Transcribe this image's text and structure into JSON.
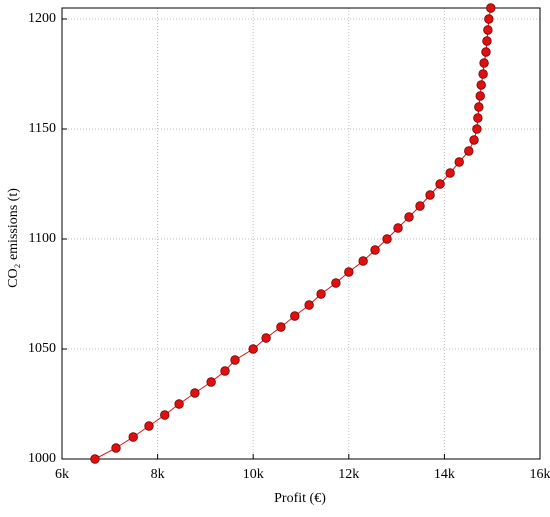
{
  "chart_data": {
    "type": "scatter",
    "xlabel": "Profit (€)",
    "ylabel": "CO₂ emissions (t)",
    "x": [
      6690,
      7130,
      7490,
      7820,
      8150,
      8450,
      8780,
      9120,
      9410,
      9620,
      10000,
      10270,
      10580,
      10870,
      11170,
      11420,
      11730,
      12000,
      12300,
      12550,
      12800,
      13030,
      13260,
      13490,
      13700,
      13910,
      14120,
      14310,
      14510,
      14620,
      14680,
      14700,
      14720,
      14750,
      14770,
      14810,
      14830,
      14870,
      14890,
      14910,
      14930,
      14970
    ],
    "values": [
      1000,
      1005,
      1010,
      1015,
      1020,
      1025,
      1030,
      1035,
      1040,
      1045,
      1050,
      1055,
      1060,
      1065,
      1070,
      1075,
      1080,
      1085,
      1090,
      1095,
      1100,
      1105,
      1110,
      1115,
      1120,
      1125,
      1130,
      1135,
      1140,
      1145,
      1150,
      1155,
      1160,
      1165,
      1170,
      1175,
      1180,
      1185,
      1190,
      1195,
      1200,
      1205
    ],
    "color": "#e01010",
    "xlim": [
      6000,
      16000
    ],
    "xticks": [
      {
        "value": 6000,
        "label": "6k"
      },
      {
        "value": 8000,
        "label": "8k"
      },
      {
        "value": 10000,
        "label": "10k"
      },
      {
        "value": 12000,
        "label": "12k"
      },
      {
        "value": 14000,
        "label": "14k"
      },
      {
        "value": 16000,
        "label": "16k"
      }
    ],
    "ylim": [
      1000,
      1205
    ],
    "yticks": [
      1000,
      1050,
      1100,
      1150,
      1200
    ],
    "grid": true
  }
}
